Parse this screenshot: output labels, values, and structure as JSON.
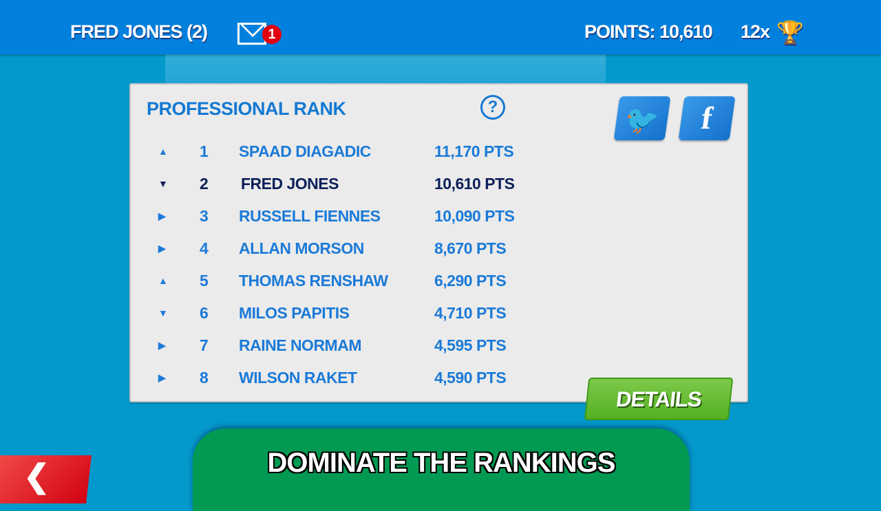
{
  "header": {
    "player": "FRED JONES (2)",
    "mail_count": "1",
    "points": "POINTS: 10,610",
    "trophies": "12x",
    "icons": [
      "mail-icon",
      "trophy-icon"
    ]
  },
  "panel": {
    "title": "PROFESSIONAL RANK",
    "help": "?",
    "twitter": "twitter-icon",
    "facebook": "f",
    "rows": [
      {
        "trend": "up",
        "rank": "1",
        "name": "SPAAD DIAGADIC",
        "points": "11,170 PTS"
      },
      {
        "trend": "down",
        "rank": "2",
        "name": "FRED JONES",
        "points": "10,610 PTS",
        "current": true
      },
      {
        "trend": "same",
        "rank": "3",
        "name": "RUSSELL FIENNES",
        "points": "10,090 PTS"
      },
      {
        "trend": "same",
        "rank": "4",
        "name": "ALLAN MORSON",
        "points": "8,670 PTS"
      },
      {
        "trend": "up",
        "rank": "5",
        "name": "THOMAS RENSHAW",
        "points": "6,290 PTS"
      },
      {
        "trend": "down",
        "rank": "6",
        "name": "MILOS PAPITIS",
        "points": "4,710 PTS"
      },
      {
        "trend": "same",
        "rank": "7",
        "name": "RAINE NORMAM",
        "points": "4,595 PTS"
      },
      {
        "trend": "same",
        "rank": "8",
        "name": "WILSON RAKET",
        "points": "4,590 PTS"
      }
    ]
  },
  "details_label": "DETAILS",
  "banner": "DOMINATE THE RANKINGS",
  "back": "❮",
  "colors": {
    "topbar": "#0280dd",
    "background": "#0499cc",
    "accent": "#1b7ad8",
    "green": "#029a52",
    "red": "#d00010"
  }
}
